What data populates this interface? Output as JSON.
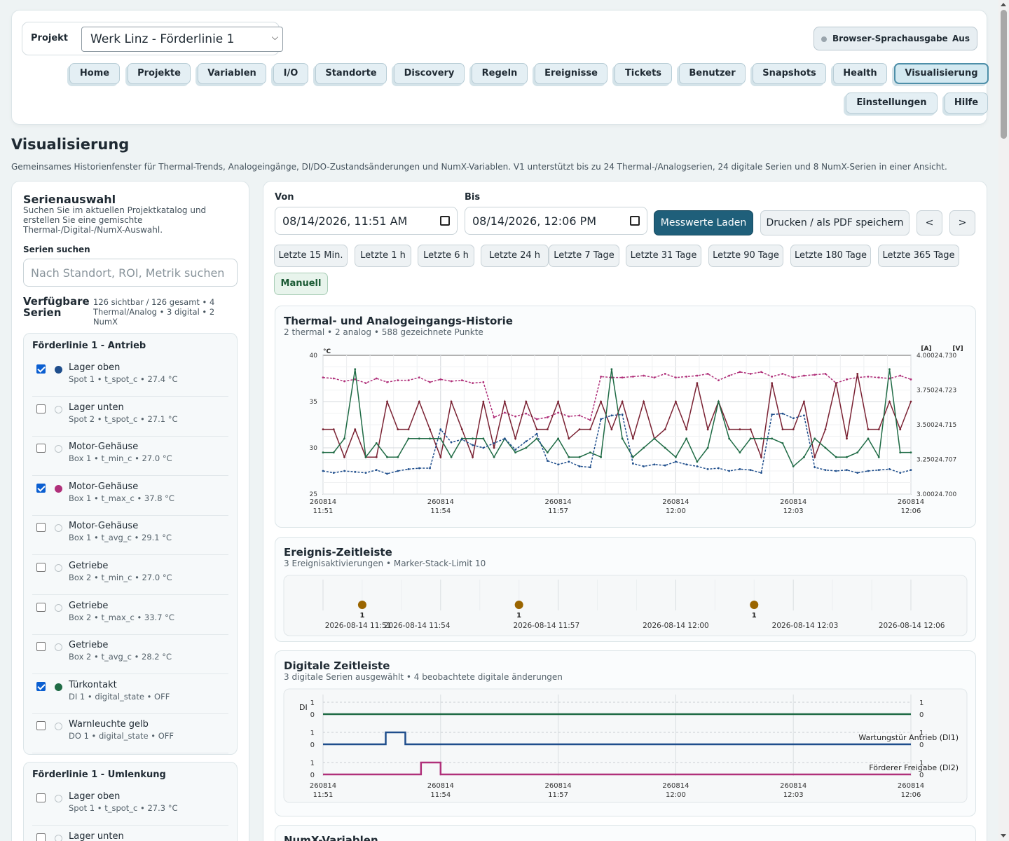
{
  "header": {
    "project_label": "Projekt",
    "project_value": "Werk Linz - Förderlinie 1",
    "speech_label": "Browser-Sprachausgabe",
    "speech_state": "Aus",
    "nav": [
      "Home",
      "Projekte",
      "Variablen",
      "I/O",
      "Standorte",
      "Discovery",
      "Regeln",
      "Ereignisse",
      "Tickets",
      "Benutzer",
      "Snapshots",
      "Health",
      "Visualisierung",
      "Einstellungen",
      "Hilfe"
    ],
    "active_nav": "Visualisierung"
  },
  "page": {
    "title": "Visualisierung",
    "subtitle": "Gemeinsames Historienfenster für Thermal-Trends, Analogeingänge, DI/DO-Zustandsänderungen und NumX-Variablen. V1 unterstützt bis zu 24 Thermal-/Analogserien, 24 digitale Serien und 8 NumX-Serien in einer Ansicht."
  },
  "sidebar": {
    "title": "Serienauswahl",
    "description": "Suchen Sie im aktuellen Projektkatalog und erstellen Sie eine gemischte Thermal-/Digital-/NumX-Auswahl.",
    "search_label": "Serien suchen",
    "search_placeholder": "Nach Standort, ROI, Metrik suchen",
    "available_label": "Verfügbare Serien",
    "available_count": "126 sichtbar / 126 gesamt • 4 Thermal/Analog • 3 digital • 2 NumX",
    "groups": [
      {
        "title": "Förderlinie 1 - Antrieb",
        "items": [
          {
            "name": "Lager oben",
            "meta": "Spot 1 • t_spot_c • 27.4 °C",
            "checked": true,
            "color": "#1f4e8c"
          },
          {
            "name": "Lager unten",
            "meta": "Spot 2 • t_spot_c • 27.1 °C",
            "checked": false,
            "color": ""
          },
          {
            "name": "Motor-Gehäuse",
            "meta": "Box 1 • t_min_c • 27.0 °C",
            "checked": false,
            "color": ""
          },
          {
            "name": "Motor-Gehäuse",
            "meta": "Box 1 • t_max_c • 37.8 °C",
            "checked": true,
            "color": "#b0307a"
          },
          {
            "name": "Motor-Gehäuse",
            "meta": "Box 1 • t_avg_c • 29.1 °C",
            "checked": false,
            "color": ""
          },
          {
            "name": "Getriebe",
            "meta": "Box 2 • t_min_c • 27.0 °C",
            "checked": false,
            "color": ""
          },
          {
            "name": "Getriebe",
            "meta": "Box 2 • t_max_c • 33.7 °C",
            "checked": false,
            "color": ""
          },
          {
            "name": "Getriebe",
            "meta": "Box 2 • t_avg_c • 28.2 °C",
            "checked": false,
            "color": ""
          },
          {
            "name": "Türkontakt",
            "meta": "DI 1 • digital_state • OFF",
            "checked": true,
            "color": "#1f6b45"
          },
          {
            "name": "Warnleuchte gelb",
            "meta": "DO 1 • digital_state • OFF",
            "checked": false,
            "color": ""
          }
        ]
      },
      {
        "title": "Förderlinie 1 - Umlenkung",
        "items": [
          {
            "name": "Lager oben",
            "meta": "Spot 1 • t_spot_c • 27.3 °C",
            "checked": false,
            "color": ""
          },
          {
            "name": "Lager unten",
            "meta": "",
            "checked": false,
            "color": ""
          }
        ]
      }
    ]
  },
  "controls": {
    "from_label": "Von",
    "from_value": "08/14/2026, 11:51 AM",
    "to_label": "Bis",
    "to_value": "08/14/2026, 12:06 PM",
    "load_button": "Messwerte Laden",
    "print_button": "Drucken / als PDF speichern",
    "prev_button": "<",
    "next_button": ">",
    "ranges": [
      "Letzte 15 Min.",
      "Letzte 1 h",
      "Letzte 6 h",
      "Letzte 24 h",
      "Letzte 7 Tage",
      "Letzte 31 Tage",
      "Letzte 90 Tage",
      "Letzte 180 Tage",
      "Letzte 365 Tage"
    ],
    "manual_label": "Manuell"
  },
  "thermal_card": {
    "title": "Thermal- und Analogeingangs-Historie",
    "subtitle": "2 thermal • 2 analog • 588 gezeichnete Punkte",
    "y_unit_left": "°C",
    "y_unit_right_a": "[A]",
    "y_unit_right_v": "[V]",
    "y_ticks_left": [
      "40",
      "35",
      "30",
      "25"
    ],
    "y_ticks_right": [
      "4.00024.730",
      "3.75024.723",
      "3.50024.715",
      "3.25024.707",
      "3.00024.700"
    ],
    "x_ticks": [
      [
        "260814",
        "11:51"
      ],
      [
        "260814",
        "11:54"
      ],
      [
        "260814",
        "11:57"
      ],
      [
        "260814",
        "12:00"
      ],
      [
        "260814",
        "12:03"
      ],
      [
        "260814",
        "12:06"
      ]
    ]
  },
  "event_card": {
    "title": "Ereignis-Zeitleiste",
    "subtitle": "3 Ereignisaktivierungen • Marker-Stack-Limit 10",
    "marker_color": "#9a6500",
    "markers": [
      {
        "time": "11:52",
        "count": "1"
      },
      {
        "time": "11:56",
        "count": "1"
      },
      {
        "time": "12:02",
        "count": "1"
      }
    ],
    "x_ticks": [
      "2026-08-14 11:51",
      "2026-08-14 11:54",
      "2026-08-14 11:57",
      "2026-08-14 12:00",
      "2026-08-14 12:03",
      "2026-08-14 12:06"
    ]
  },
  "digital_card": {
    "title": "Digitale Zeitleiste",
    "subtitle": "3 digitale Serien ausgewählt • 4 beobachtete digitale änderungen",
    "y_label": "DI",
    "lanes": [
      {
        "label": "",
        "color": "#1f6b45"
      },
      {
        "label": "Wartungstür Antrieb (DI1)",
        "color": "#1f4e8c"
      },
      {
        "label": "Förderer Freigabe (DI2)",
        "color": "#b0307a"
      }
    ],
    "x_ticks": [
      [
        "260814",
        "11:51"
      ],
      [
        "260814",
        "11:54"
      ],
      [
        "260814",
        "11:57"
      ],
      [
        "260814",
        "12:00"
      ],
      [
        "260814",
        "12:03"
      ],
      [
        "260814",
        "12:06"
      ]
    ]
  },
  "numx_card": {
    "title": "NumX-Variablen"
  },
  "chart_data": [
    {
      "type": "line",
      "title": "Thermal- und Analogeingangs-Historie",
      "xlabel": "",
      "ylabel": "°C",
      "x_range": [
        "2026-08-14 11:51",
        "2026-08-14 12:06"
      ],
      "ylim": [
        25,
        40
      ],
      "series": [
        {
          "color": "#b0307a",
          "style": "dashed",
          "values": [
            37.6,
            37.5,
            37.2,
            37.4,
            37.0,
            37.5,
            37.1,
            37.3,
            37.3,
            37.6,
            37.1,
            37.4,
            37.2,
            37.3,
            37.0,
            37.1,
            33.3,
            33.8,
            33.4,
            33.7,
            33.1,
            33.3,
            33.8,
            33.4,
            33.5,
            33.0,
            37.7,
            37.6,
            37.6,
            37.7,
            37.8,
            37.6,
            38.0,
            37.6,
            37.7,
            37.8,
            38.0,
            37.3,
            37.8,
            38.2,
            38.0,
            38.2,
            37.7,
            38.0,
            37.6,
            37.8,
            37.9,
            38.0,
            37.0,
            37.4,
            37.6,
            37.7,
            37.6,
            37.5,
            37.8,
            37.4
          ]
        },
        {
          "color": "#7a2233",
          "style": "solid",
          "values": [
            32,
            32,
            29,
            32,
            29,
            29,
            35,
            32,
            32,
            35,
            32,
            29,
            35,
            32,
            29,
            35,
            30,
            35,
            31,
            35,
            32,
            32,
            35,
            31,
            32,
            32,
            35,
            32,
            35,
            31,
            35,
            31,
            32,
            35,
            32,
            37,
            32,
            35,
            32,
            32,
            32,
            29,
            37,
            32,
            32,
            35,
            29,
            32,
            37,
            31,
            38,
            32,
            32,
            35,
            32,
            35
          ]
        },
        {
          "color": "#1f6b45",
          "style": "solid",
          "values": [
            29.5,
            29.5,
            31,
            38.5,
            29,
            30.5,
            29,
            29,
            31,
            31,
            31,
            31,
            29,
            31,
            31,
            31,
            29,
            31,
            29.5,
            30,
            31,
            29.5,
            31,
            29,
            29,
            29.5,
            29,
            38.5,
            31,
            29,
            30,
            31,
            30,
            29,
            31,
            28.5,
            30,
            35,
            31,
            29.5,
            31,
            31,
            31,
            30.5,
            28,
            29,
            31,
            30,
            29,
            29,
            29.5,
            31,
            29,
            38.5,
            29.5,
            29.5
          ]
        },
        {
          "color": "#1f4e8c",
          "style": "dashed",
          "values": [
            27.5,
            27.3,
            27.5,
            27.4,
            27.3,
            27.6,
            27.2,
            27.5,
            27.7,
            27.8,
            27.8,
            32,
            30.6,
            30.9,
            30.3,
            30.0,
            30.5,
            31.0,
            29.8,
            30.7,
            31.5,
            28.6,
            28.2,
            28.5,
            28.0,
            27.9,
            33.1,
            33.5,
            33.6,
            28.3,
            28.0,
            28.2,
            28.1,
            28.5,
            28.2,
            28.0,
            27.7,
            27.8,
            27.5,
            27.7,
            27.6,
            27.3,
            33.6,
            33.7,
            33.2,
            33.5,
            27.9,
            27.6,
            27.5,
            27.6,
            27.3,
            27.5,
            27.6,
            27.7,
            27.3,
            27.6
          ]
        }
      ]
    },
    {
      "type": "scatter",
      "title": "Ereignis-Zeitleiste",
      "x": [
        "11:52",
        "11:56",
        "12:02"
      ],
      "values": [
        1,
        1,
        1
      ]
    },
    {
      "type": "line",
      "title": "Digitale Zeitleiste",
      "ylabel": "DI",
      "x_range": [
        "11:51",
        "12:06"
      ],
      "ylim": [
        0,
        1
      ],
      "series": [
        {
          "name": "",
          "color": "#1f6b45",
          "steps": [
            [
              "11:51",
              0
            ],
            [
              "12:06",
              0
            ]
          ]
        },
        {
          "name": "Wartungstür Antrieb (DI1)",
          "color": "#1f4e8c",
          "steps": [
            [
              "11:51",
              0
            ],
            [
              "11:52.6",
              1
            ],
            [
              "11:53.1",
              0
            ],
            [
              "12:06",
              0
            ]
          ]
        },
        {
          "name": "Förderer Freigabe (DI2)",
          "color": "#b0307a",
          "steps": [
            [
              "11:51",
              0
            ],
            [
              "11:53.5",
              1
            ],
            [
              "11:54",
              0
            ],
            [
              "12:06",
              0
            ]
          ]
        }
      ]
    }
  ]
}
